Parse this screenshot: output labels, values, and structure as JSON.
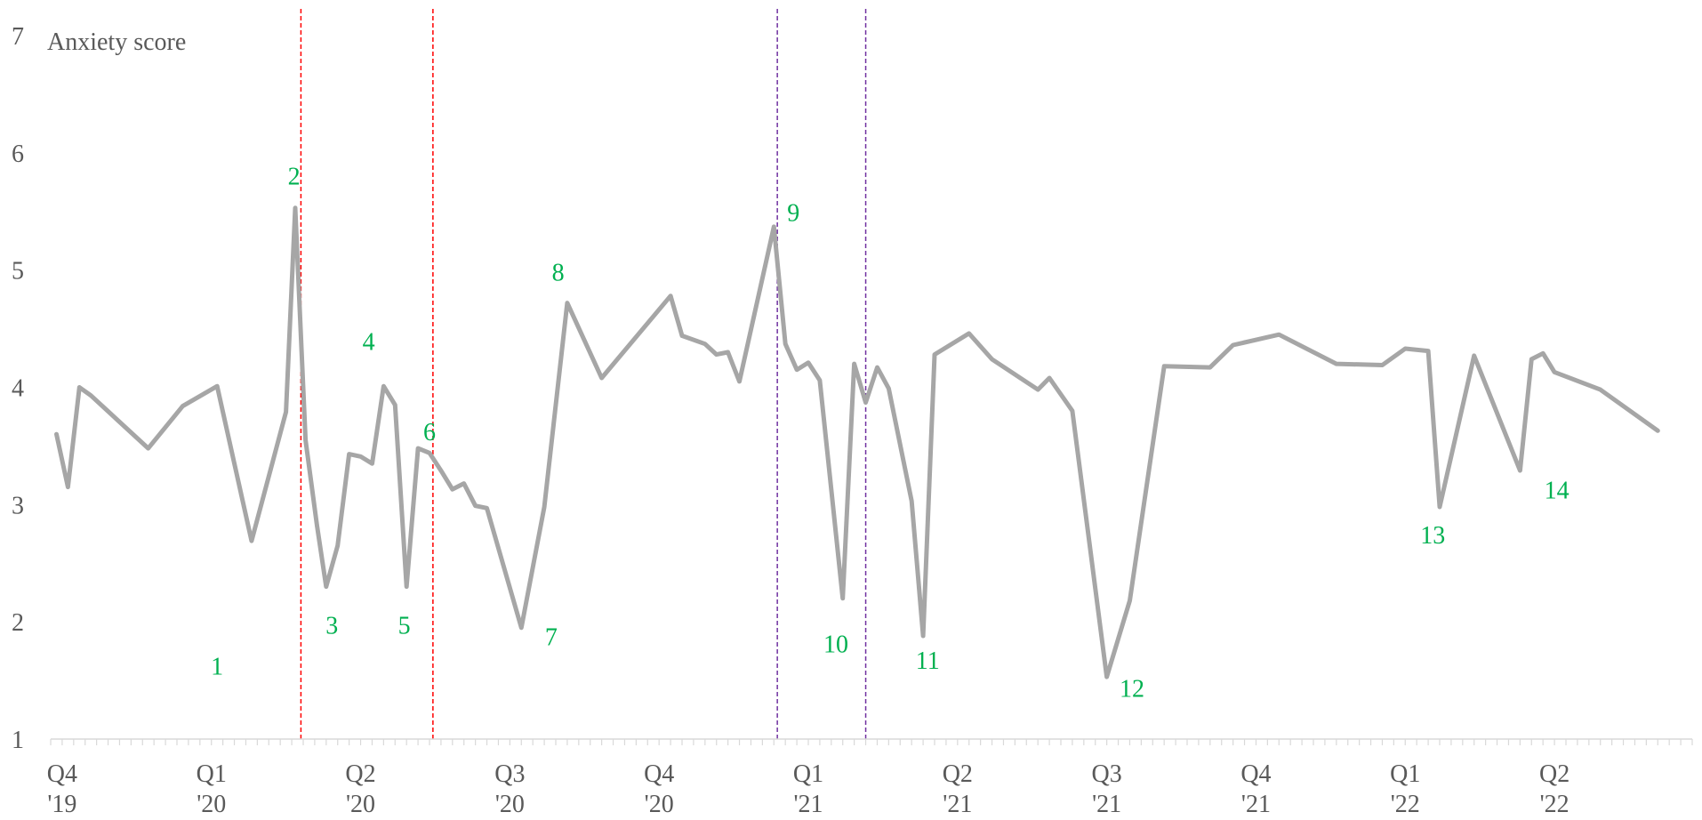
{
  "chart_data": {
    "type": "line",
    "ylabel": "Anxiety score",
    "ylim": [
      1,
      7
    ],
    "yticks": [
      1,
      2,
      3,
      4,
      5,
      6,
      7
    ],
    "xlim": [
      0,
      143
    ],
    "x_tick_labels": [
      {
        "x": 1,
        "lines": [
          "Q4",
          "'19"
        ]
      },
      {
        "x": 14,
        "lines": [
          "Q1",
          "'20"
        ]
      },
      {
        "x": 27,
        "lines": [
          "Q2",
          "'20"
        ]
      },
      {
        "x": 40,
        "lines": [
          "Q3",
          "'20"
        ]
      },
      {
        "x": 53,
        "lines": [
          "Q4",
          "'20"
        ]
      },
      {
        "x": 66,
        "lines": [
          "Q1",
          "'21"
        ]
      },
      {
        "x": 79,
        "lines": [
          "Q2",
          "'21"
        ]
      },
      {
        "x": 92,
        "lines": [
          "Q3",
          "'21"
        ]
      },
      {
        "x": 105,
        "lines": [
          "Q4",
          "'21"
        ]
      },
      {
        "x": 118,
        "lines": [
          "Q1",
          "'22"
        ]
      },
      {
        "x": 131,
        "lines": [
          "Q2",
          "'22"
        ]
      }
    ],
    "series": [
      {
        "color": "#a6a6a6",
        "points": [
          [
            0.5,
            3.6
          ],
          [
            1.5,
            3.15
          ],
          [
            2.5,
            4.0
          ],
          [
            3.5,
            3.93
          ],
          [
            8.5,
            3.48
          ],
          [
            11.5,
            3.84
          ],
          [
            14.5,
            4.01
          ],
          [
            17.5,
            2.69
          ],
          [
            20.5,
            3.79
          ],
          [
            21.3,
            5.53
          ],
          [
            22.2,
            3.55
          ],
          [
            23.2,
            2.82
          ],
          [
            24.0,
            2.3
          ],
          [
            25.0,
            2.65
          ],
          [
            26.0,
            3.43
          ],
          [
            27.0,
            3.41
          ],
          [
            28.0,
            3.35
          ],
          [
            29.0,
            4.01
          ],
          [
            30.0,
            3.85
          ],
          [
            31.0,
            2.3
          ],
          [
            32.0,
            3.48
          ],
          [
            33.0,
            3.44
          ],
          [
            34.0,
            3.29
          ],
          [
            35.0,
            3.13
          ],
          [
            36.0,
            3.18
          ],
          [
            37.0,
            2.99
          ],
          [
            38.0,
            2.97
          ],
          [
            41.0,
            1.95
          ],
          [
            43.0,
            2.98
          ],
          [
            45.0,
            4.72
          ],
          [
            48.0,
            4.08
          ],
          [
            54.0,
            4.78
          ],
          [
            55.0,
            4.44
          ],
          [
            57.0,
            4.37
          ],
          [
            58.0,
            4.28
          ],
          [
            59.0,
            4.3
          ],
          [
            60.0,
            4.05
          ],
          [
            63.0,
            5.37
          ],
          [
            64.0,
            4.37
          ],
          [
            65.0,
            4.15
          ],
          [
            66.0,
            4.21
          ],
          [
            67.0,
            4.06
          ],
          [
            69.0,
            2.2
          ],
          [
            70.0,
            4.2
          ],
          [
            71.0,
            3.87
          ],
          [
            72.0,
            4.17
          ],
          [
            73.0,
            3.99
          ],
          [
            75.0,
            3.03
          ],
          [
            76.0,
            1.88
          ],
          [
            77.0,
            4.28
          ],
          [
            80.0,
            4.46
          ],
          [
            82.0,
            4.24
          ],
          [
            86.0,
            3.98
          ],
          [
            87.0,
            4.08
          ],
          [
            89.0,
            3.8
          ],
          [
            92.0,
            1.53
          ],
          [
            94.0,
            2.18
          ],
          [
            97.0,
            4.18
          ],
          [
            101.0,
            4.17
          ],
          [
            103.0,
            4.36
          ],
          [
            107.0,
            4.45
          ],
          [
            112.0,
            4.2
          ],
          [
            116.0,
            4.19
          ],
          [
            118.0,
            4.33
          ],
          [
            120.0,
            4.31
          ],
          [
            121.0,
            2.98
          ],
          [
            124.0,
            4.27
          ],
          [
            128.0,
            3.29
          ],
          [
            129.0,
            4.24
          ],
          [
            130.0,
            4.29
          ],
          [
            131.0,
            4.13
          ],
          [
            135.0,
            3.98
          ],
          [
            140.0,
            3.63
          ]
        ]
      }
    ],
    "reference_lines": [
      {
        "x": 21.8,
        "color": "#ff0000",
        "style": "dashed"
      },
      {
        "x": 33.3,
        "color": "#ff0000",
        "style": "dashed"
      },
      {
        "x": 63.3,
        "color": "#7030a0",
        "style": "dashed"
      },
      {
        "x": 71.0,
        "color": "#7030a0",
        "style": "dashed"
      }
    ],
    "annotations": [
      {
        "text": "1",
        "x": 14.5,
        "y": 1.55
      },
      {
        "text": "2",
        "x": 21.2,
        "y": 5.73
      },
      {
        "text": "3",
        "x": 24.5,
        "y": 1.9
      },
      {
        "text": "4",
        "x": 27.7,
        "y": 4.32
      },
      {
        "text": "5",
        "x": 30.8,
        "y": 1.9
      },
      {
        "text": "6",
        "x": 33.0,
        "y": 3.55
      },
      {
        "text": "7",
        "x": 43.6,
        "y": 1.8
      },
      {
        "text": "8",
        "x": 44.2,
        "y": 4.91
      },
      {
        "text": "9",
        "x": 64.7,
        "y": 5.42
      },
      {
        "text": "10",
        "x": 68.4,
        "y": 1.74
      },
      {
        "text": "11",
        "x": 76.4,
        "y": 1.6
      },
      {
        "text": "12",
        "x": 94.2,
        "y": 1.36
      },
      {
        "text": "13",
        "x": 120.4,
        "y": 2.67
      },
      {
        "text": "14",
        "x": 131.2,
        "y": 3.05
      }
    ],
    "grid": false,
    "legend": "none"
  }
}
